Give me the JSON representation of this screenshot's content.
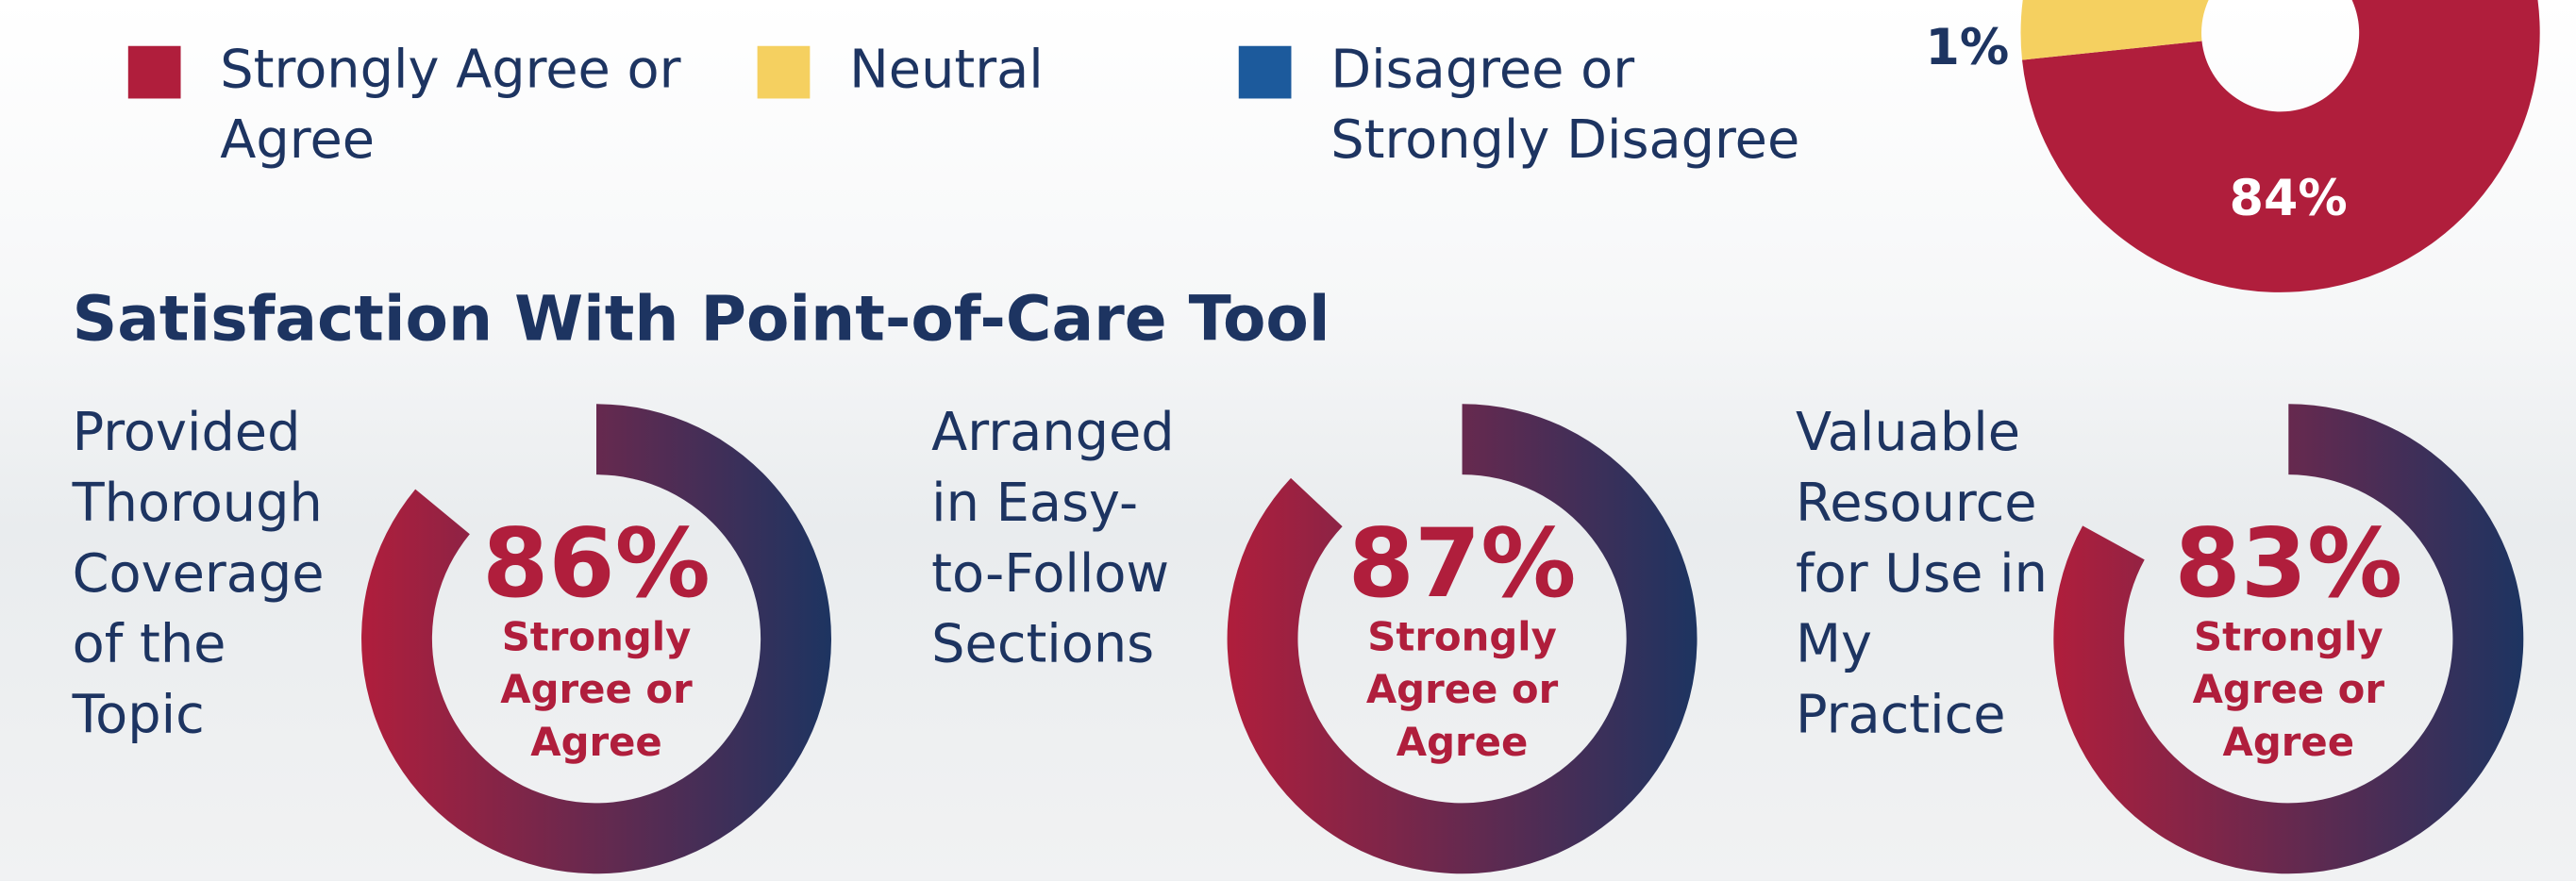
{
  "chart_data": [
    {
      "type": "pie",
      "categories": [
        "Strongly Agree or Agree",
        "Neutral",
        "Disagree or Strongly Disagree"
      ],
      "values": [
        84,
        15,
        1
      ],
      "value_labels": [
        "84%",
        null,
        "1%"
      ],
      "colors": [
        "#b01e3c",
        "#f5d060",
        "#1c5a9c"
      ]
    },
    {
      "type": "gauge",
      "title": "Provided Thorough Coverage of the Topic",
      "value": 86,
      "value_label": "86%",
      "subtitle": "Strongly Agree or Agree",
      "colors": [
        "#b01e3c",
        "#1d3461"
      ]
    },
    {
      "type": "gauge",
      "title": "Arranged in Easy-to-Follow Sections",
      "value": 87,
      "value_label": "87%",
      "subtitle": "Strongly Agree or Agree",
      "colors": [
        "#b01e3c",
        "#1d3461"
      ]
    },
    {
      "type": "gauge",
      "title": "Valuable Resource for Use in My Practice",
      "value": 83,
      "value_label": "83%",
      "subtitle": "Strongly Agree or Agree",
      "colors": [
        "#b01e3c",
        "#1d3461"
      ]
    }
  ],
  "section_title": "Satisfaction With Point-of-Care Tool"
}
